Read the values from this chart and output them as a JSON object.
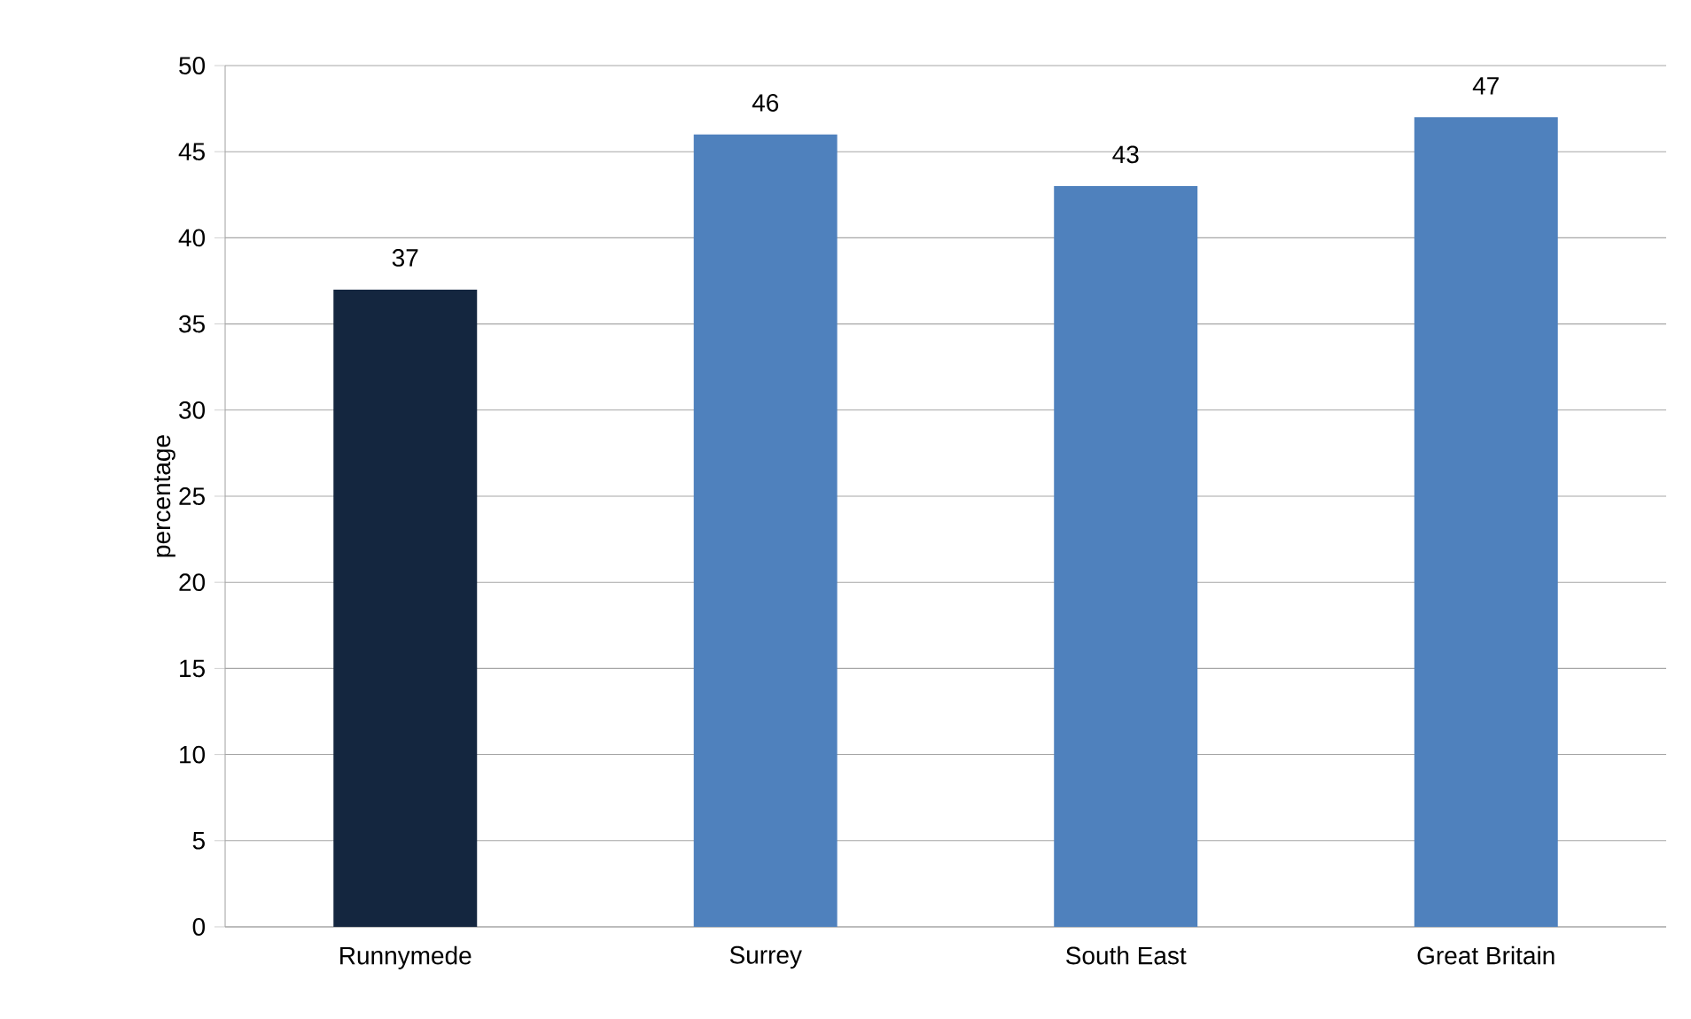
{
  "chart_data": {
    "type": "bar",
    "ylabel": "percentage",
    "categories": [
      "Runnymede",
      "Surrey",
      "South East",
      "Great Britain"
    ],
    "values": [
      37,
      46,
      43,
      47
    ],
    "colors": [
      "#14263f",
      "#4f81bd",
      "#4f81bd",
      "#4f81bd"
    ],
    "ylim": [
      0,
      50
    ],
    "yticks": [
      0,
      5,
      10,
      15,
      20,
      25,
      30,
      35,
      40,
      45,
      50
    ],
    "grid": "y",
    "data_labels": true
  }
}
